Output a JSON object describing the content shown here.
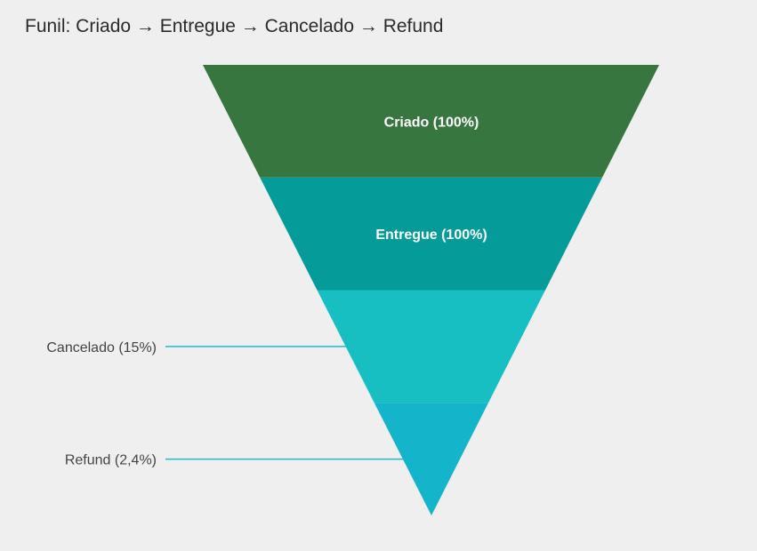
{
  "chart_data": {
    "type": "funnel",
    "title": "Funil: Criado → Entregue → Cancelado → Refund",
    "stages": [
      {
        "label": "Criado (100%)",
        "name": "Criado",
        "value": 100,
        "color": "#38763f",
        "label_position": "inside"
      },
      {
        "label": "Entregue (100%)",
        "name": "Entregue",
        "value": 100,
        "color": "#049b98",
        "label_position": "inside"
      },
      {
        "label": "Cancelado (15%)",
        "name": "Cancelado",
        "value": 15,
        "color": "#17bfc3",
        "label_position": "left"
      },
      {
        "label": "Refund (2,4%)",
        "name": "Refund",
        "value": 2.4,
        "color": "#14b4cb",
        "label_position": "left"
      }
    ],
    "leader_line_color": "#25b8c8"
  }
}
